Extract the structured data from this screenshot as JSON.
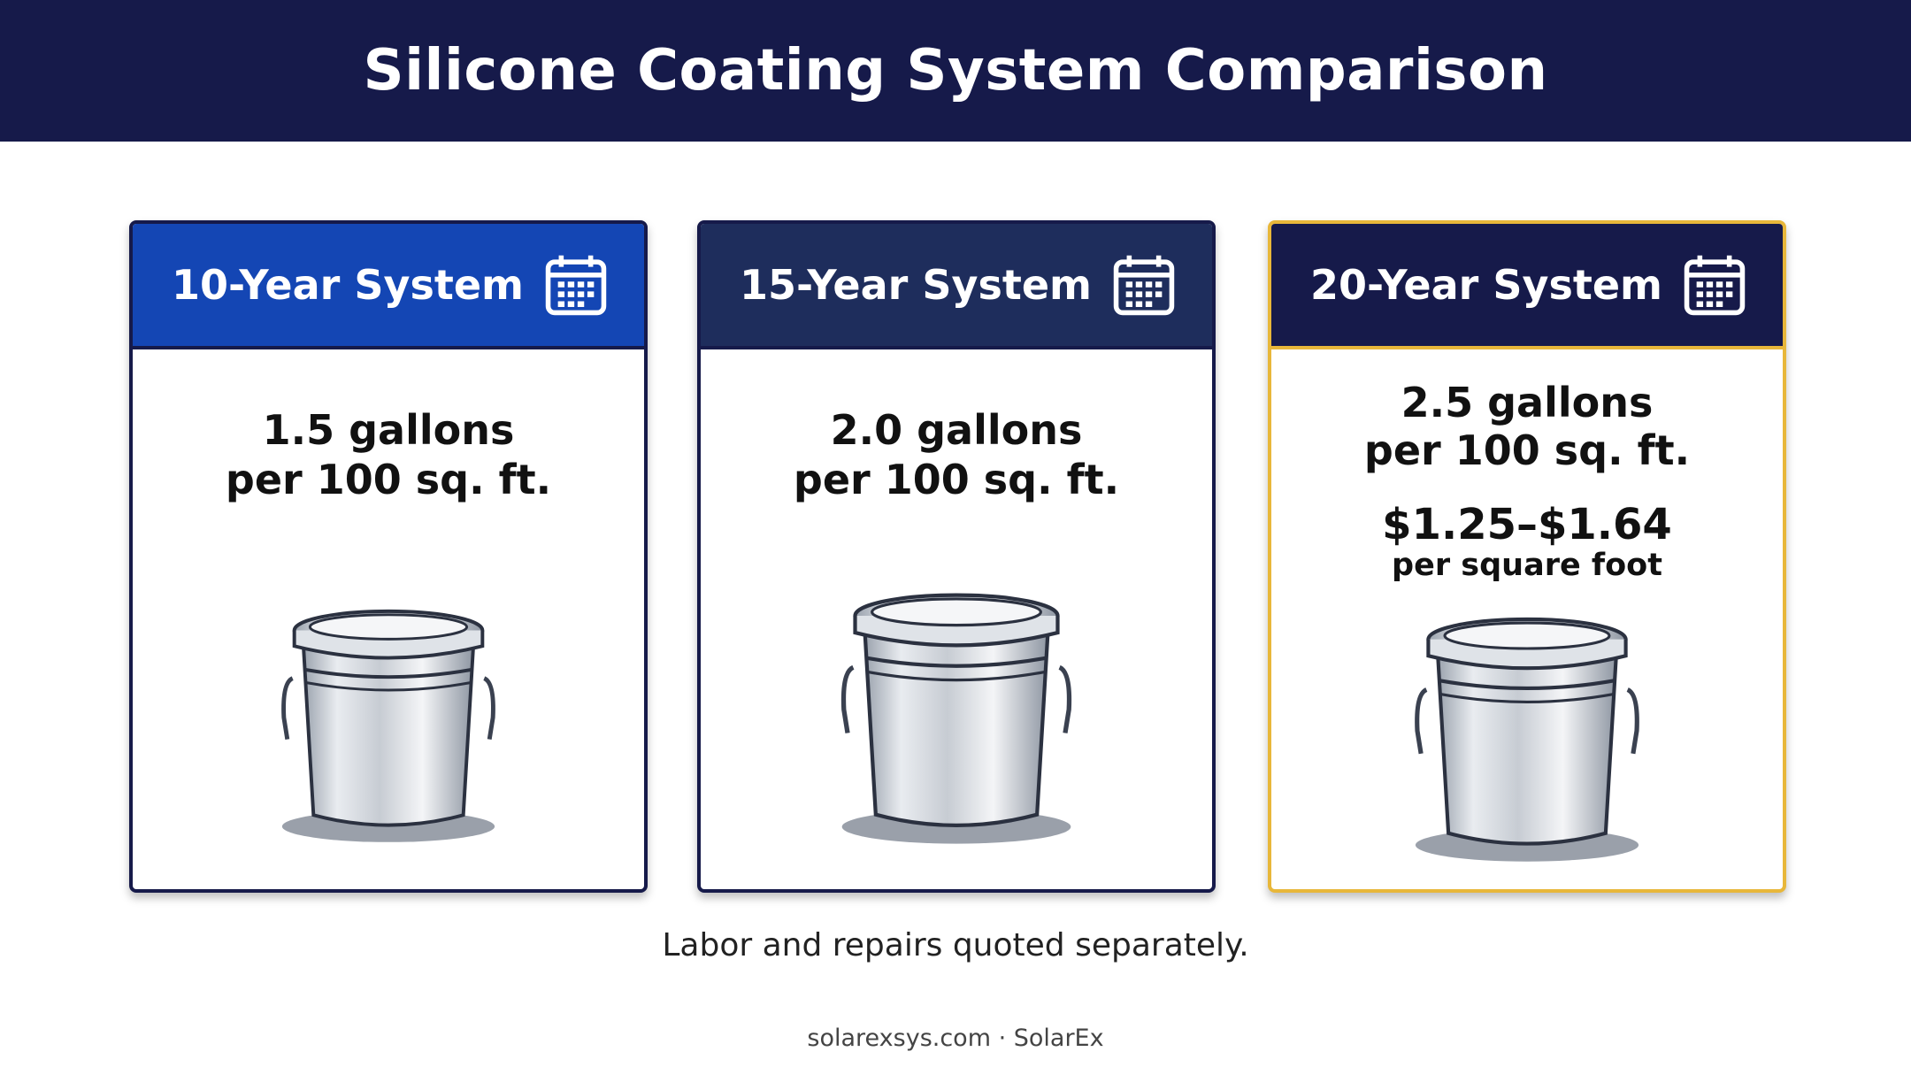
{
  "header": {
    "title": "Silicone Coating System Comparison"
  },
  "cards": [
    {
      "title": "10-Year System",
      "amount": "1.5 gallons",
      "coverage": "per 100 sq. ft."
    },
    {
      "title": "15-Year System",
      "amount": "2.0 gallons",
      "coverage": "per 100 sq. ft."
    },
    {
      "title": "20-Year System",
      "amount": "2.5 gallons",
      "coverage": "per 100 sq. ft.",
      "price": "$1.25–$1.64",
      "price_unit": "per square foot"
    }
  ],
  "note": "Labor and repairs quoted separately.",
  "source": "solarexsys.com · SolarEx"
}
